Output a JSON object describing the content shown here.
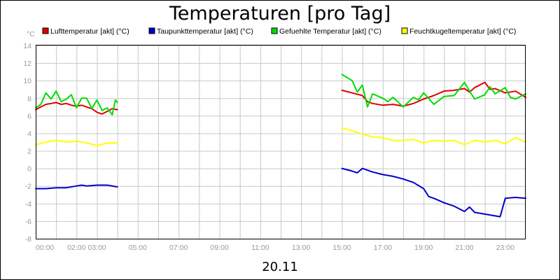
{
  "chart_data": {
    "type": "line",
    "title": "Temperaturen [pro Tag]",
    "xlabel": "20.11",
    "ylabel": "°C",
    "ylim": [
      -8,
      14
    ],
    "yticks": [
      14,
      12,
      10,
      8,
      6,
      4,
      2,
      0,
      -2,
      -4,
      -6,
      -8
    ],
    "xlim": [
      0,
      24
    ],
    "x_tick_labels": [
      {
        "hour": 0,
        "label": "00:00"
      },
      {
        "hour": 2,
        "label": "02:00"
      },
      {
        "hour": 3,
        "label": "03:00"
      },
      {
        "hour": 5,
        "label": "05:00"
      },
      {
        "hour": 7,
        "label": "07:00"
      },
      {
        "hour": 9,
        "label": "09:00"
      },
      {
        "hour": 11,
        "label": "11:00"
      },
      {
        "hour": 13,
        "label": "13:00"
      },
      {
        "hour": 15,
        "label": "15:00"
      },
      {
        "hour": 17,
        "label": "17:00"
      },
      {
        "hour": 19,
        "label": "19:00"
      },
      {
        "hour": 21,
        "label": "21:00"
      },
      {
        "hour": 23,
        "label": "23:00"
      }
    ],
    "grid": true,
    "legend_position": "top",
    "series": [
      {
        "name": "Lufttemperatur [akt] (°C)",
        "color": "#e00000",
        "segments": [
          [
            [
              0,
              6.7
            ],
            [
              0.25,
              7.0
            ],
            [
              0.5,
              7.3
            ],
            [
              0.75,
              7.4
            ],
            [
              1.0,
              7.5
            ],
            [
              1.25,
              7.3
            ],
            [
              1.5,
              7.4
            ],
            [
              1.75,
              7.2
            ],
            [
              2.0,
              7.1
            ],
            [
              2.25,
              7.2
            ],
            [
              2.5,
              7.0
            ],
            [
              2.75,
              6.8
            ],
            [
              3.0,
              6.4
            ],
            [
              3.25,
              6.2
            ],
            [
              3.5,
              6.5
            ],
            [
              3.75,
              6.8
            ],
            [
              4.0,
              6.7
            ]
          ],
          [
            [
              15.0,
              8.9
            ],
            [
              15.5,
              8.6
            ],
            [
              16.0,
              8.3
            ],
            [
              16.25,
              7.6
            ],
            [
              16.5,
              7.4
            ],
            [
              17.0,
              7.2
            ],
            [
              17.5,
              7.3
            ],
            [
              18.0,
              7.1
            ],
            [
              18.5,
              7.4
            ],
            [
              19.0,
              7.9
            ],
            [
              19.5,
              8.3
            ],
            [
              20.0,
              8.8
            ],
            [
              20.5,
              8.9
            ],
            [
              21.0,
              9.1
            ],
            [
              21.25,
              8.7
            ],
            [
              21.5,
              9.2
            ],
            [
              22.0,
              9.8
            ],
            [
              22.25,
              9.0
            ],
            [
              22.5,
              9.1
            ],
            [
              23.0,
              8.6
            ],
            [
              23.5,
              8.8
            ],
            [
              24.0,
              8.1
            ]
          ]
        ]
      },
      {
        "name": "Taupunkttemperatur [akt] (°C)",
        "color": "#0000cc",
        "segments": [
          [
            [
              0,
              -2.3
            ],
            [
              0.5,
              -2.3
            ],
            [
              1.0,
              -2.2
            ],
            [
              1.5,
              -2.2
            ],
            [
              2.0,
              -2.0
            ],
            [
              2.25,
              -1.9
            ],
            [
              2.5,
              -2.0
            ],
            [
              3.0,
              -1.9
            ],
            [
              3.5,
              -1.9
            ],
            [
              4.0,
              -2.1
            ]
          ],
          [
            [
              15.0,
              0.0
            ],
            [
              15.5,
              -0.3
            ],
            [
              15.75,
              -0.5
            ],
            [
              16.0,
              0.0
            ],
            [
              16.5,
              -0.4
            ],
            [
              17.0,
              -0.7
            ],
            [
              17.5,
              -0.9
            ],
            [
              18.0,
              -1.2
            ],
            [
              18.5,
              -1.6
            ],
            [
              19.0,
              -2.3
            ],
            [
              19.25,
              -3.2
            ],
            [
              19.5,
              -3.4
            ],
            [
              20.0,
              -3.9
            ],
            [
              20.5,
              -4.3
            ],
            [
              21.0,
              -4.9
            ],
            [
              21.25,
              -4.4
            ],
            [
              21.5,
              -5.0
            ],
            [
              22.0,
              -5.2
            ],
            [
              22.5,
              -5.4
            ],
            [
              22.75,
              -5.5
            ],
            [
              23.0,
              -3.4
            ],
            [
              23.5,
              -3.3
            ],
            [
              24.0,
              -3.4
            ]
          ]
        ]
      },
      {
        "name": "Gefuehlte Temperatur [akt] (°C)",
        "color": "#00dd00",
        "segments": [
          [
            [
              0,
              6.9
            ],
            [
              0.25,
              7.3
            ],
            [
              0.5,
              8.6
            ],
            [
              0.75,
              7.9
            ],
            [
              1.0,
              8.8
            ],
            [
              1.25,
              7.6
            ],
            [
              1.5,
              7.9
            ],
            [
              1.75,
              8.4
            ],
            [
              2.0,
              6.9
            ],
            [
              2.25,
              8.0
            ],
            [
              2.5,
              8.0
            ],
            [
              2.75,
              6.8
            ],
            [
              3.0,
              7.8
            ],
            [
              3.25,
              6.6
            ],
            [
              3.5,
              6.9
            ],
            [
              3.75,
              6.1
            ],
            [
              3.9,
              7.8
            ],
            [
              4.0,
              7.5
            ]
          ],
          [
            [
              15.0,
              10.7
            ],
            [
              15.5,
              10.0
            ],
            [
              15.75,
              8.7
            ],
            [
              16.0,
              9.5
            ],
            [
              16.25,
              7.0
            ],
            [
              16.5,
              8.5
            ],
            [
              17.0,
              8.0
            ],
            [
              17.25,
              7.6
            ],
            [
              17.5,
              8.1
            ],
            [
              18.0,
              7.0
            ],
            [
              18.5,
              8.1
            ],
            [
              18.75,
              7.8
            ],
            [
              19.0,
              8.6
            ],
            [
              19.5,
              7.3
            ],
            [
              20.0,
              8.2
            ],
            [
              20.5,
              8.3
            ],
            [
              21.0,
              9.8
            ],
            [
              21.25,
              8.8
            ],
            [
              21.5,
              7.9
            ],
            [
              22.0,
              8.4
            ],
            [
              22.25,
              9.3
            ],
            [
              22.5,
              8.5
            ],
            [
              23.0,
              9.2
            ],
            [
              23.25,
              8.1
            ],
            [
              23.5,
              7.9
            ],
            [
              24.0,
              8.5
            ]
          ]
        ]
      },
      {
        "name": "Feuchtkugeltemperatur [akt] (°C)",
        "color": "#ffff00",
        "segments": [
          [
            [
              0,
              2.7
            ],
            [
              0.5,
              3.0
            ],
            [
              1.0,
              3.2
            ],
            [
              1.5,
              3.0
            ],
            [
              2.0,
              3.1
            ],
            [
              2.5,
              2.9
            ],
            [
              3.0,
              2.6
            ],
            [
              3.5,
              2.9
            ],
            [
              4.0,
              2.9
            ]
          ],
          [
            [
              15.0,
              4.6
            ],
            [
              15.5,
              4.3
            ],
            [
              16.0,
              3.9
            ],
            [
              16.5,
              3.6
            ],
            [
              17.0,
              3.5
            ],
            [
              17.5,
              3.2
            ],
            [
              18.0,
              3.2
            ],
            [
              18.5,
              3.3
            ],
            [
              19.0,
              2.9
            ],
            [
              19.5,
              3.2
            ],
            [
              20.0,
              3.1
            ],
            [
              20.5,
              3.2
            ],
            [
              21.0,
              2.7
            ],
            [
              21.5,
              3.2
            ],
            [
              22.0,
              3.0
            ],
            [
              22.5,
              3.2
            ],
            [
              23.0,
              2.8
            ],
            [
              23.5,
              3.5
            ],
            [
              24.0,
              3.0
            ]
          ]
        ]
      }
    ]
  }
}
